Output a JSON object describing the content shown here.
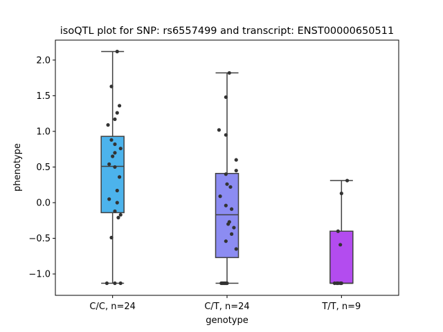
{
  "chart_data": {
    "type": "box",
    "title": "isoQTL plot for SNP: rs6557499 and transcript: ENST00000650511",
    "xlabel": "genotype",
    "ylabel": "phenotype",
    "ylim": [
      -1.3,
      2.28
    ],
    "yticks": [
      -1.0,
      -0.5,
      0.0,
      0.5,
      1.0,
      1.5,
      2.0
    ],
    "ytick_labels": [
      "−1.0",
      "−0.5",
      "0.0",
      "0.5",
      "1.0",
      "1.5",
      "2.0"
    ],
    "categories": [
      "C/C, n=24",
      "C/T, n=24",
      "T/T, n=9"
    ],
    "colors": [
      "#4cb3ec",
      "#8c8cf2",
      "#b34cef"
    ],
    "box_edge_color": "#3f3f3f",
    "point_color": "#333333",
    "boxes": [
      {
        "q1": -0.14,
        "median": 0.51,
        "q3": 0.93,
        "whisker_low": -1.13,
        "whisker_high": 2.12
      },
      {
        "q1": -0.77,
        "median": -0.17,
        "q3": 0.41,
        "whisker_low": -1.13,
        "whisker_high": 1.82
      },
      {
        "q1": -1.13,
        "median": -1.13,
        "q3": -0.4,
        "whisker_low": -1.13,
        "whisker_high": 0.31
      }
    ],
    "points": [
      [
        {
          "dx": 0.04,
          "y": 2.12
        },
        {
          "dx": -0.01,
          "y": 1.63
        },
        {
          "dx": 0.06,
          "y": 1.36
        },
        {
          "dx": 0.04,
          "y": 1.26
        },
        {
          "dx": 0.02,
          "y": 1.17
        },
        {
          "dx": -0.04,
          "y": 1.09
        },
        {
          "dx": -0.01,
          "y": 0.88
        },
        {
          "dx": 0.02,
          "y": 0.82
        },
        {
          "dx": 0.07,
          "y": 0.76
        },
        {
          "dx": 0.02,
          "y": 0.7
        },
        {
          "dx": 0.0,
          "y": 0.65
        },
        {
          "dx": -0.03,
          "y": 0.54
        },
        {
          "dx": 0.02,
          "y": 0.5
        },
        {
          "dx": 0.06,
          "y": 0.36
        },
        {
          "dx": 0.04,
          "y": 0.17
        },
        {
          "dx": -0.03,
          "y": 0.05
        },
        {
          "dx": 0.04,
          "y": 0.0
        },
        {
          "dx": 0.02,
          "y": -0.12
        },
        {
          "dx": 0.07,
          "y": -0.17
        },
        {
          "dx": 0.05,
          "y": -0.21
        },
        {
          "dx": -0.01,
          "y": -0.49
        },
        {
          "dx": -0.05,
          "y": -1.13
        },
        {
          "dx": 0.02,
          "y": -1.13
        },
        {
          "dx": 0.07,
          "y": -1.13
        }
      ],
      [
        {
          "dx": 0.02,
          "y": 1.82
        },
        {
          "dx": -0.01,
          "y": 1.48
        },
        {
          "dx": -0.07,
          "y": 1.02
        },
        {
          "dx": -0.01,
          "y": 0.95
        },
        {
          "dx": 0.08,
          "y": 0.6
        },
        {
          "dx": 0.08,
          "y": 0.45
        },
        {
          "dx": -0.01,
          "y": 0.4
        },
        {
          "dx": 0.0,
          "y": 0.26
        },
        {
          "dx": 0.03,
          "y": 0.22
        },
        {
          "dx": -0.06,
          "y": 0.09
        },
        {
          "dx": -0.01,
          "y": -0.04
        },
        {
          "dx": 0.04,
          "y": -0.09
        },
        {
          "dx": 0.02,
          "y": -0.27
        },
        {
          "dx": 0.01,
          "y": -0.3
        },
        {
          "dx": 0.06,
          "y": -0.35
        },
        {
          "dx": 0.04,
          "y": -0.44
        },
        {
          "dx": -0.01,
          "y": -0.54
        },
        {
          "dx": 0.08,
          "y": -0.65
        },
        {
          "dx": -0.05,
          "y": -1.13
        },
        {
          "dx": -0.04,
          "y": -1.13
        },
        {
          "dx": -0.03,
          "y": -1.13
        },
        {
          "dx": -0.02,
          "y": -1.13
        },
        {
          "dx": -0.01,
          "y": -1.13
        },
        {
          "dx": 0.0,
          "y": -1.13
        }
      ],
      [
        {
          "dx": 0.05,
          "y": 0.31
        },
        {
          "dx": 0.0,
          "y": 0.13
        },
        {
          "dx": -0.03,
          "y": -0.4
        },
        {
          "dx": -0.01,
          "y": -0.59
        },
        {
          "dx": -0.06,
          "y": -1.13
        },
        {
          "dx": -0.04,
          "y": -1.13
        },
        {
          "dx": -0.03,
          "y": -1.13
        },
        {
          "dx": -0.01,
          "y": -1.13
        },
        {
          "dx": 0.0,
          "y": -1.13
        }
      ]
    ]
  }
}
